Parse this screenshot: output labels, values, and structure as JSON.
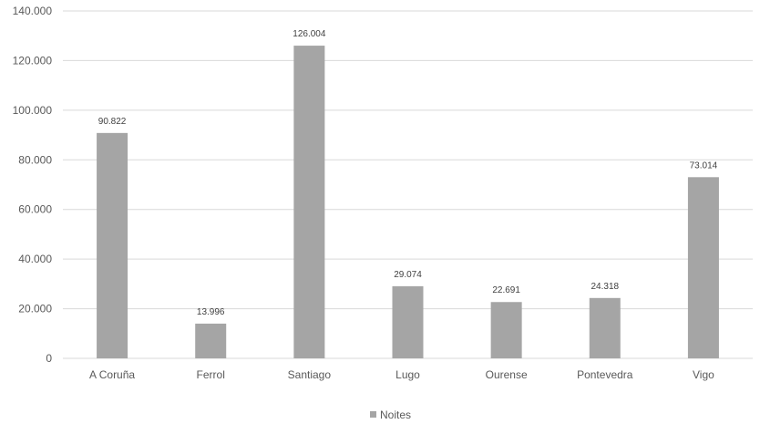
{
  "chart_data": {
    "type": "bar",
    "categories": [
      "A Coruña",
      "Ferrol",
      "Santiago",
      "Lugo",
      "Ourense",
      "Pontevedra",
      "Vigo"
    ],
    "series": [
      {
        "name": "Noites",
        "values": [
          90822,
          13996,
          126004,
          29074,
          22691,
          24318,
          73014
        ],
        "labels": [
          "90.822",
          "13.996",
          "126.004",
          "29.074",
          "22.691",
          "24.318",
          "73.014"
        ]
      }
    ],
    "ylim": [
      0,
      140000
    ],
    "ytick_values": [
      0,
      20000,
      40000,
      60000,
      80000,
      100000,
      120000,
      140000
    ],
    "ytick_labels": [
      "0",
      "20.000",
      "40.000",
      "60.000",
      "80.000",
      "100.000",
      "120.000",
      "140.000"
    ],
    "grid": true,
    "legend_position": "bottom",
    "colors": {
      "bar": "#a5a5a5",
      "grid": "#d9d9d9",
      "text": "#595959"
    }
  }
}
